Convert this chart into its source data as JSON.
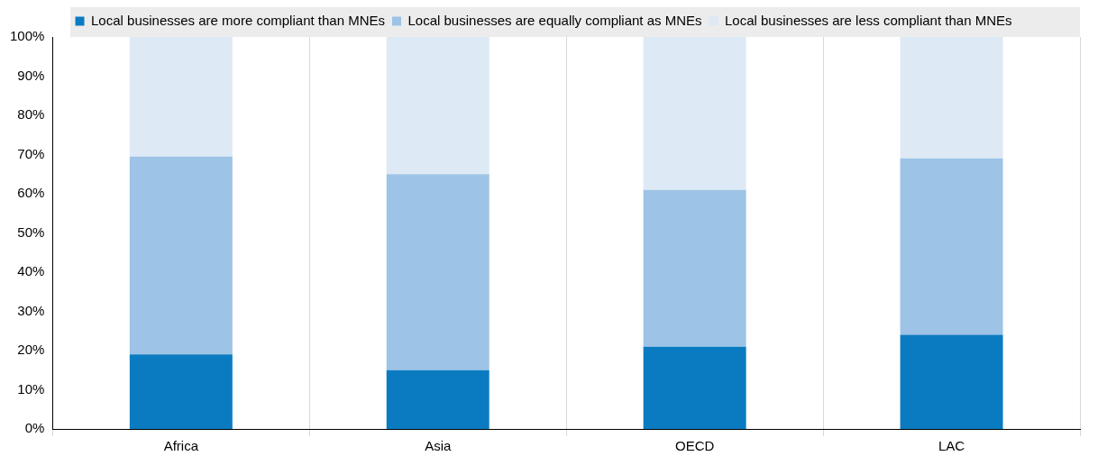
{
  "chart_data": {
    "type": "bar",
    "stacked": true,
    "categories": [
      "Africa",
      "Asia",
      "OECD",
      "LAC"
    ],
    "series": [
      {
        "name": "Local businesses are more compliant than MNEs",
        "color": "#0b7bc1",
        "values": [
          19,
          15,
          21,
          24
        ]
      },
      {
        "name": "Local businesses are equally compliant as MNEs",
        "color": "#9dc3e6",
        "values": [
          50.5,
          50,
          40,
          45
        ]
      },
      {
        "name": "Local businesses are less compliant than MNEs",
        "color": "#dde9f5",
        "values": [
          30.5,
          35,
          39,
          31
        ]
      }
    ],
    "ylim": [
      0,
      100
    ],
    "yticks": [
      {
        "value": 0,
        "label": "0%"
      },
      {
        "value": 10,
        "label": "10%"
      },
      {
        "value": 20,
        "label": "20%"
      },
      {
        "value": 30,
        "label": "30%"
      },
      {
        "value": 40,
        "label": "40%"
      },
      {
        "value": 50,
        "label": "50%"
      },
      {
        "value": 60,
        "label": "60%"
      },
      {
        "value": 70,
        "label": "70%"
      },
      {
        "value": 80,
        "label": "80%"
      },
      {
        "value": 90,
        "label": "90%"
      },
      {
        "value": 100,
        "label": "100%"
      }
    ],
    "grid": "x",
    "legend": "top"
  }
}
